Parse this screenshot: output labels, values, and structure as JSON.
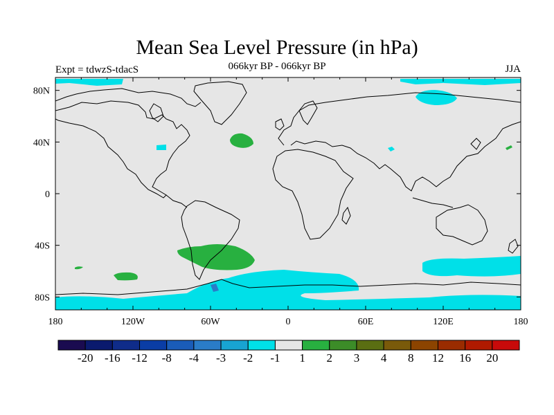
{
  "header": {
    "title": "Mean Sea Level Pressure (in hPa)",
    "experiment": "Expt = tdwzS-tdacS",
    "period": "066kyr BP - 066kyr BP",
    "season": "JJA"
  },
  "map": {
    "projection": "cylindrical-equidistant",
    "lon_range": [
      -180,
      180
    ],
    "lat_range": [
      -90,
      90
    ],
    "background_color": "#e6e6e6",
    "coastline_color": "#000000",
    "lat_ticks": [
      {
        "lat": 80,
        "label": "80N"
      },
      {
        "lat": 40,
        "label": "40N"
      },
      {
        "lat": 0,
        "label": "0"
      },
      {
        "lat": -40,
        "label": "40S"
      },
      {
        "lat": -80,
        "label": "80S"
      }
    ],
    "lon_ticks": [
      {
        "lon": -180,
        "label": "180"
      },
      {
        "lon": -120,
        "label": "120W"
      },
      {
        "lon": -60,
        "label": "60W"
      },
      {
        "lon": 0,
        "label": "0"
      },
      {
        "lon": 60,
        "label": "60E"
      },
      {
        "lon": 120,
        "label": "120E"
      },
      {
        "lon": 180,
        "label": "180"
      }
    ]
  },
  "colorbar": {
    "colors": [
      "#1a0b50",
      "#0a1a6e",
      "#0f2c8a",
      "#0a3da5",
      "#1a5cb8",
      "#2a7cc8",
      "#18a4d2",
      "#00e0e8",
      "#e6e6e6",
      "#28b040",
      "#3c8c28",
      "#5a6e12",
      "#7a5a0a",
      "#8c4400",
      "#9a2c00",
      "#b01a00",
      "#c80a0a"
    ],
    "labels": [
      "-20",
      "-16",
      "-12",
      "-8",
      "-4",
      "-3",
      "-2",
      "-1",
      "1",
      "2",
      "3",
      "4",
      "8",
      "12",
      "16",
      "20"
    ]
  }
}
